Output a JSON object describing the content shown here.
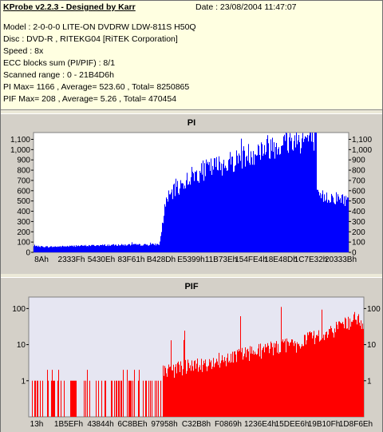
{
  "header": {
    "title": "KProbe v2.2.3 - Designed by Karr",
    "date": "Date : 23/08/2004 11:47:07",
    "lines": [
      "Model : 2-0-0-0 LITE-ON DVDRW LDW-811S   H50Q",
      "Disc : DVD-R , RITEKG04 [RiTEK Corporation]",
      "Speed : 8x",
      "ECC blocks sum (PI/PIF) : 8/1",
      "Scanned range : 0 - 21B4D6h",
      "PI Max= 1166 , Average= 523.60 , Total= 8250865",
      "PIF Max= 208 , Average= 5.26 , Total= 470454"
    ]
  },
  "chart_data": [
    {
      "type": "bar",
      "title": "PI",
      "x_tick_labels": [
        "8Ah",
        "2333Fh",
        "5430Eh",
        "83F61h",
        "B428Dh",
        "E5399h",
        "11B73Eh",
        "154FE4h",
        "18E48Dh",
        "1C7E32h",
        "20333Bh"
      ],
      "y_ticks": [
        0,
        100,
        200,
        300,
        400,
        500,
        600,
        700,
        800,
        900,
        1000,
        1100
      ],
      "ylim": [
        0,
        1166
      ],
      "max": 1166,
      "average": 523.6,
      "x": [
        0,
        0.05,
        0.1,
        0.15,
        0.2,
        0.25,
        0.3,
        0.35,
        0.4,
        0.42,
        0.45,
        0.5,
        0.55,
        0.6,
        0.65,
        0.7,
        0.75,
        0.8,
        0.85,
        0.9,
        0.9001,
        0.95,
        1.0
      ],
      "values": [
        60,
        55,
        60,
        65,
        70,
        72,
        75,
        75,
        80,
        520,
        620,
        760,
        830,
        880,
        930,
        1000,
        1060,
        1100,
        1130,
        1140,
        560,
        550,
        520
      ],
      "color": "#0000ff"
    },
    {
      "type": "bar",
      "title": "PIF",
      "scale": "log",
      "x_tick_labels": [
        "13h",
        "1B5EFh",
        "43844h",
        "6C8BEh",
        "97958h",
        "C32B8h",
        "F0869h",
        "1236E4h",
        "15DEE6h",
        "19B10Fh",
        "1D8F6Eh"
      ],
      "y_ticks": [
        1,
        10,
        100
      ],
      "ylim": [
        0.1,
        208
      ],
      "max": 208,
      "average": 5.26,
      "x": [
        0,
        0.1,
        0.2,
        0.3,
        0.4,
        0.5,
        0.6,
        0.7,
        0.8,
        0.9,
        0.98,
        1.0
      ],
      "values": [
        1,
        1,
        1,
        1,
        2,
        3,
        5,
        8,
        12,
        25,
        60,
        30
      ],
      "color": "#ff0000"
    }
  ]
}
